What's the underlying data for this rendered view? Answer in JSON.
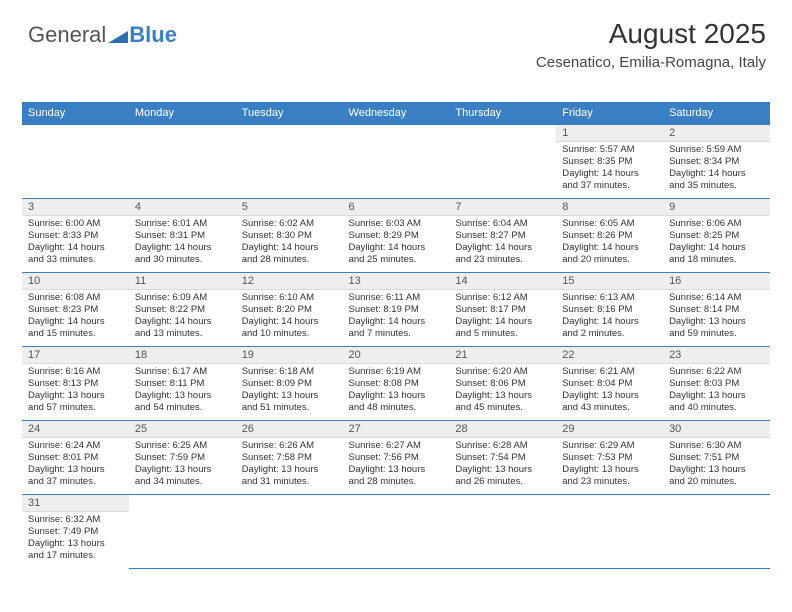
{
  "logo": {
    "word1": "General",
    "word2": "Blue",
    "triangle_color": "#2f6fb0"
  },
  "header": {
    "title": "August 2025",
    "subtitle": "Cesenatico, Emilia-Romagna, Italy"
  },
  "calendar": {
    "header_bg": "#3a7fc4",
    "header_text_color": "#ffffff",
    "daynum_bg": "#eeeeee",
    "grid_line_color": "#3a7fc4",
    "weekdays": [
      "Sunday",
      "Monday",
      "Tuesday",
      "Wednesday",
      "Thursday",
      "Friday",
      "Saturday"
    ],
    "weeks": [
      [
        {
          "empty": true
        },
        {
          "empty": true
        },
        {
          "empty": true
        },
        {
          "empty": true
        },
        {
          "empty": true
        },
        {
          "day": "1",
          "sunrise": "Sunrise: 5:57 AM",
          "sunset": "Sunset: 8:35 PM",
          "daylight1": "Daylight: 14 hours",
          "daylight2": "and 37 minutes."
        },
        {
          "day": "2",
          "sunrise": "Sunrise: 5:59 AM",
          "sunset": "Sunset: 8:34 PM",
          "daylight1": "Daylight: 14 hours",
          "daylight2": "and 35 minutes."
        }
      ],
      [
        {
          "day": "3",
          "sunrise": "Sunrise: 6:00 AM",
          "sunset": "Sunset: 8:33 PM",
          "daylight1": "Daylight: 14 hours",
          "daylight2": "and 33 minutes."
        },
        {
          "day": "4",
          "sunrise": "Sunrise: 6:01 AM",
          "sunset": "Sunset: 8:31 PM",
          "daylight1": "Daylight: 14 hours",
          "daylight2": "and 30 minutes."
        },
        {
          "day": "5",
          "sunrise": "Sunrise: 6:02 AM",
          "sunset": "Sunset: 8:30 PM",
          "daylight1": "Daylight: 14 hours",
          "daylight2": "and 28 minutes."
        },
        {
          "day": "6",
          "sunrise": "Sunrise: 6:03 AM",
          "sunset": "Sunset: 8:29 PM",
          "daylight1": "Daylight: 14 hours",
          "daylight2": "and 25 minutes."
        },
        {
          "day": "7",
          "sunrise": "Sunrise: 6:04 AM",
          "sunset": "Sunset: 8:27 PM",
          "daylight1": "Daylight: 14 hours",
          "daylight2": "and 23 minutes."
        },
        {
          "day": "8",
          "sunrise": "Sunrise: 6:05 AM",
          "sunset": "Sunset: 8:26 PM",
          "daylight1": "Daylight: 14 hours",
          "daylight2": "and 20 minutes."
        },
        {
          "day": "9",
          "sunrise": "Sunrise: 6:06 AM",
          "sunset": "Sunset: 8:25 PM",
          "daylight1": "Daylight: 14 hours",
          "daylight2": "and 18 minutes."
        }
      ],
      [
        {
          "day": "10",
          "sunrise": "Sunrise: 6:08 AM",
          "sunset": "Sunset: 8:23 PM",
          "daylight1": "Daylight: 14 hours",
          "daylight2": "and 15 minutes."
        },
        {
          "day": "11",
          "sunrise": "Sunrise: 6:09 AM",
          "sunset": "Sunset: 8:22 PM",
          "daylight1": "Daylight: 14 hours",
          "daylight2": "and 13 minutes."
        },
        {
          "day": "12",
          "sunrise": "Sunrise: 6:10 AM",
          "sunset": "Sunset: 8:20 PM",
          "daylight1": "Daylight: 14 hours",
          "daylight2": "and 10 minutes."
        },
        {
          "day": "13",
          "sunrise": "Sunrise: 6:11 AM",
          "sunset": "Sunset: 8:19 PM",
          "daylight1": "Daylight: 14 hours",
          "daylight2": "and 7 minutes."
        },
        {
          "day": "14",
          "sunrise": "Sunrise: 6:12 AM",
          "sunset": "Sunset: 8:17 PM",
          "daylight1": "Daylight: 14 hours",
          "daylight2": "and 5 minutes."
        },
        {
          "day": "15",
          "sunrise": "Sunrise: 6:13 AM",
          "sunset": "Sunset: 8:16 PM",
          "daylight1": "Daylight: 14 hours",
          "daylight2": "and 2 minutes."
        },
        {
          "day": "16",
          "sunrise": "Sunrise: 6:14 AM",
          "sunset": "Sunset: 8:14 PM",
          "daylight1": "Daylight: 13 hours",
          "daylight2": "and 59 minutes."
        }
      ],
      [
        {
          "day": "17",
          "sunrise": "Sunrise: 6:16 AM",
          "sunset": "Sunset: 8:13 PM",
          "daylight1": "Daylight: 13 hours",
          "daylight2": "and 57 minutes."
        },
        {
          "day": "18",
          "sunrise": "Sunrise: 6:17 AM",
          "sunset": "Sunset: 8:11 PM",
          "daylight1": "Daylight: 13 hours",
          "daylight2": "and 54 minutes."
        },
        {
          "day": "19",
          "sunrise": "Sunrise: 6:18 AM",
          "sunset": "Sunset: 8:09 PM",
          "daylight1": "Daylight: 13 hours",
          "daylight2": "and 51 minutes."
        },
        {
          "day": "20",
          "sunrise": "Sunrise: 6:19 AM",
          "sunset": "Sunset: 8:08 PM",
          "daylight1": "Daylight: 13 hours",
          "daylight2": "and 48 minutes."
        },
        {
          "day": "21",
          "sunrise": "Sunrise: 6:20 AM",
          "sunset": "Sunset: 8:06 PM",
          "daylight1": "Daylight: 13 hours",
          "daylight2": "and 45 minutes."
        },
        {
          "day": "22",
          "sunrise": "Sunrise: 6:21 AM",
          "sunset": "Sunset: 8:04 PM",
          "daylight1": "Daylight: 13 hours",
          "daylight2": "and 43 minutes."
        },
        {
          "day": "23",
          "sunrise": "Sunrise: 6:22 AM",
          "sunset": "Sunset: 8:03 PM",
          "daylight1": "Daylight: 13 hours",
          "daylight2": "and 40 minutes."
        }
      ],
      [
        {
          "day": "24",
          "sunrise": "Sunrise: 6:24 AM",
          "sunset": "Sunset: 8:01 PM",
          "daylight1": "Daylight: 13 hours",
          "daylight2": "and 37 minutes."
        },
        {
          "day": "25",
          "sunrise": "Sunrise: 6:25 AM",
          "sunset": "Sunset: 7:59 PM",
          "daylight1": "Daylight: 13 hours",
          "daylight2": "and 34 minutes."
        },
        {
          "day": "26",
          "sunrise": "Sunrise: 6:26 AM",
          "sunset": "Sunset: 7:58 PM",
          "daylight1": "Daylight: 13 hours",
          "daylight2": "and 31 minutes."
        },
        {
          "day": "27",
          "sunrise": "Sunrise: 6:27 AM",
          "sunset": "Sunset: 7:56 PM",
          "daylight1": "Daylight: 13 hours",
          "daylight2": "and 28 minutes."
        },
        {
          "day": "28",
          "sunrise": "Sunrise: 6:28 AM",
          "sunset": "Sunset: 7:54 PM",
          "daylight1": "Daylight: 13 hours",
          "daylight2": "and 26 minutes."
        },
        {
          "day": "29",
          "sunrise": "Sunrise: 6:29 AM",
          "sunset": "Sunset: 7:53 PM",
          "daylight1": "Daylight: 13 hours",
          "daylight2": "and 23 minutes."
        },
        {
          "day": "30",
          "sunrise": "Sunrise: 6:30 AM",
          "sunset": "Sunset: 7:51 PM",
          "daylight1": "Daylight: 13 hours",
          "daylight2": "and 20 minutes."
        }
      ],
      [
        {
          "day": "31",
          "sunrise": "Sunrise: 6:32 AM",
          "sunset": "Sunset: 7:49 PM",
          "daylight1": "Daylight: 13 hours",
          "daylight2": "and 17 minutes."
        },
        {
          "empty": true
        },
        {
          "empty": true
        },
        {
          "empty": true
        },
        {
          "empty": true
        },
        {
          "empty": true
        },
        {
          "empty": true
        }
      ]
    ]
  }
}
